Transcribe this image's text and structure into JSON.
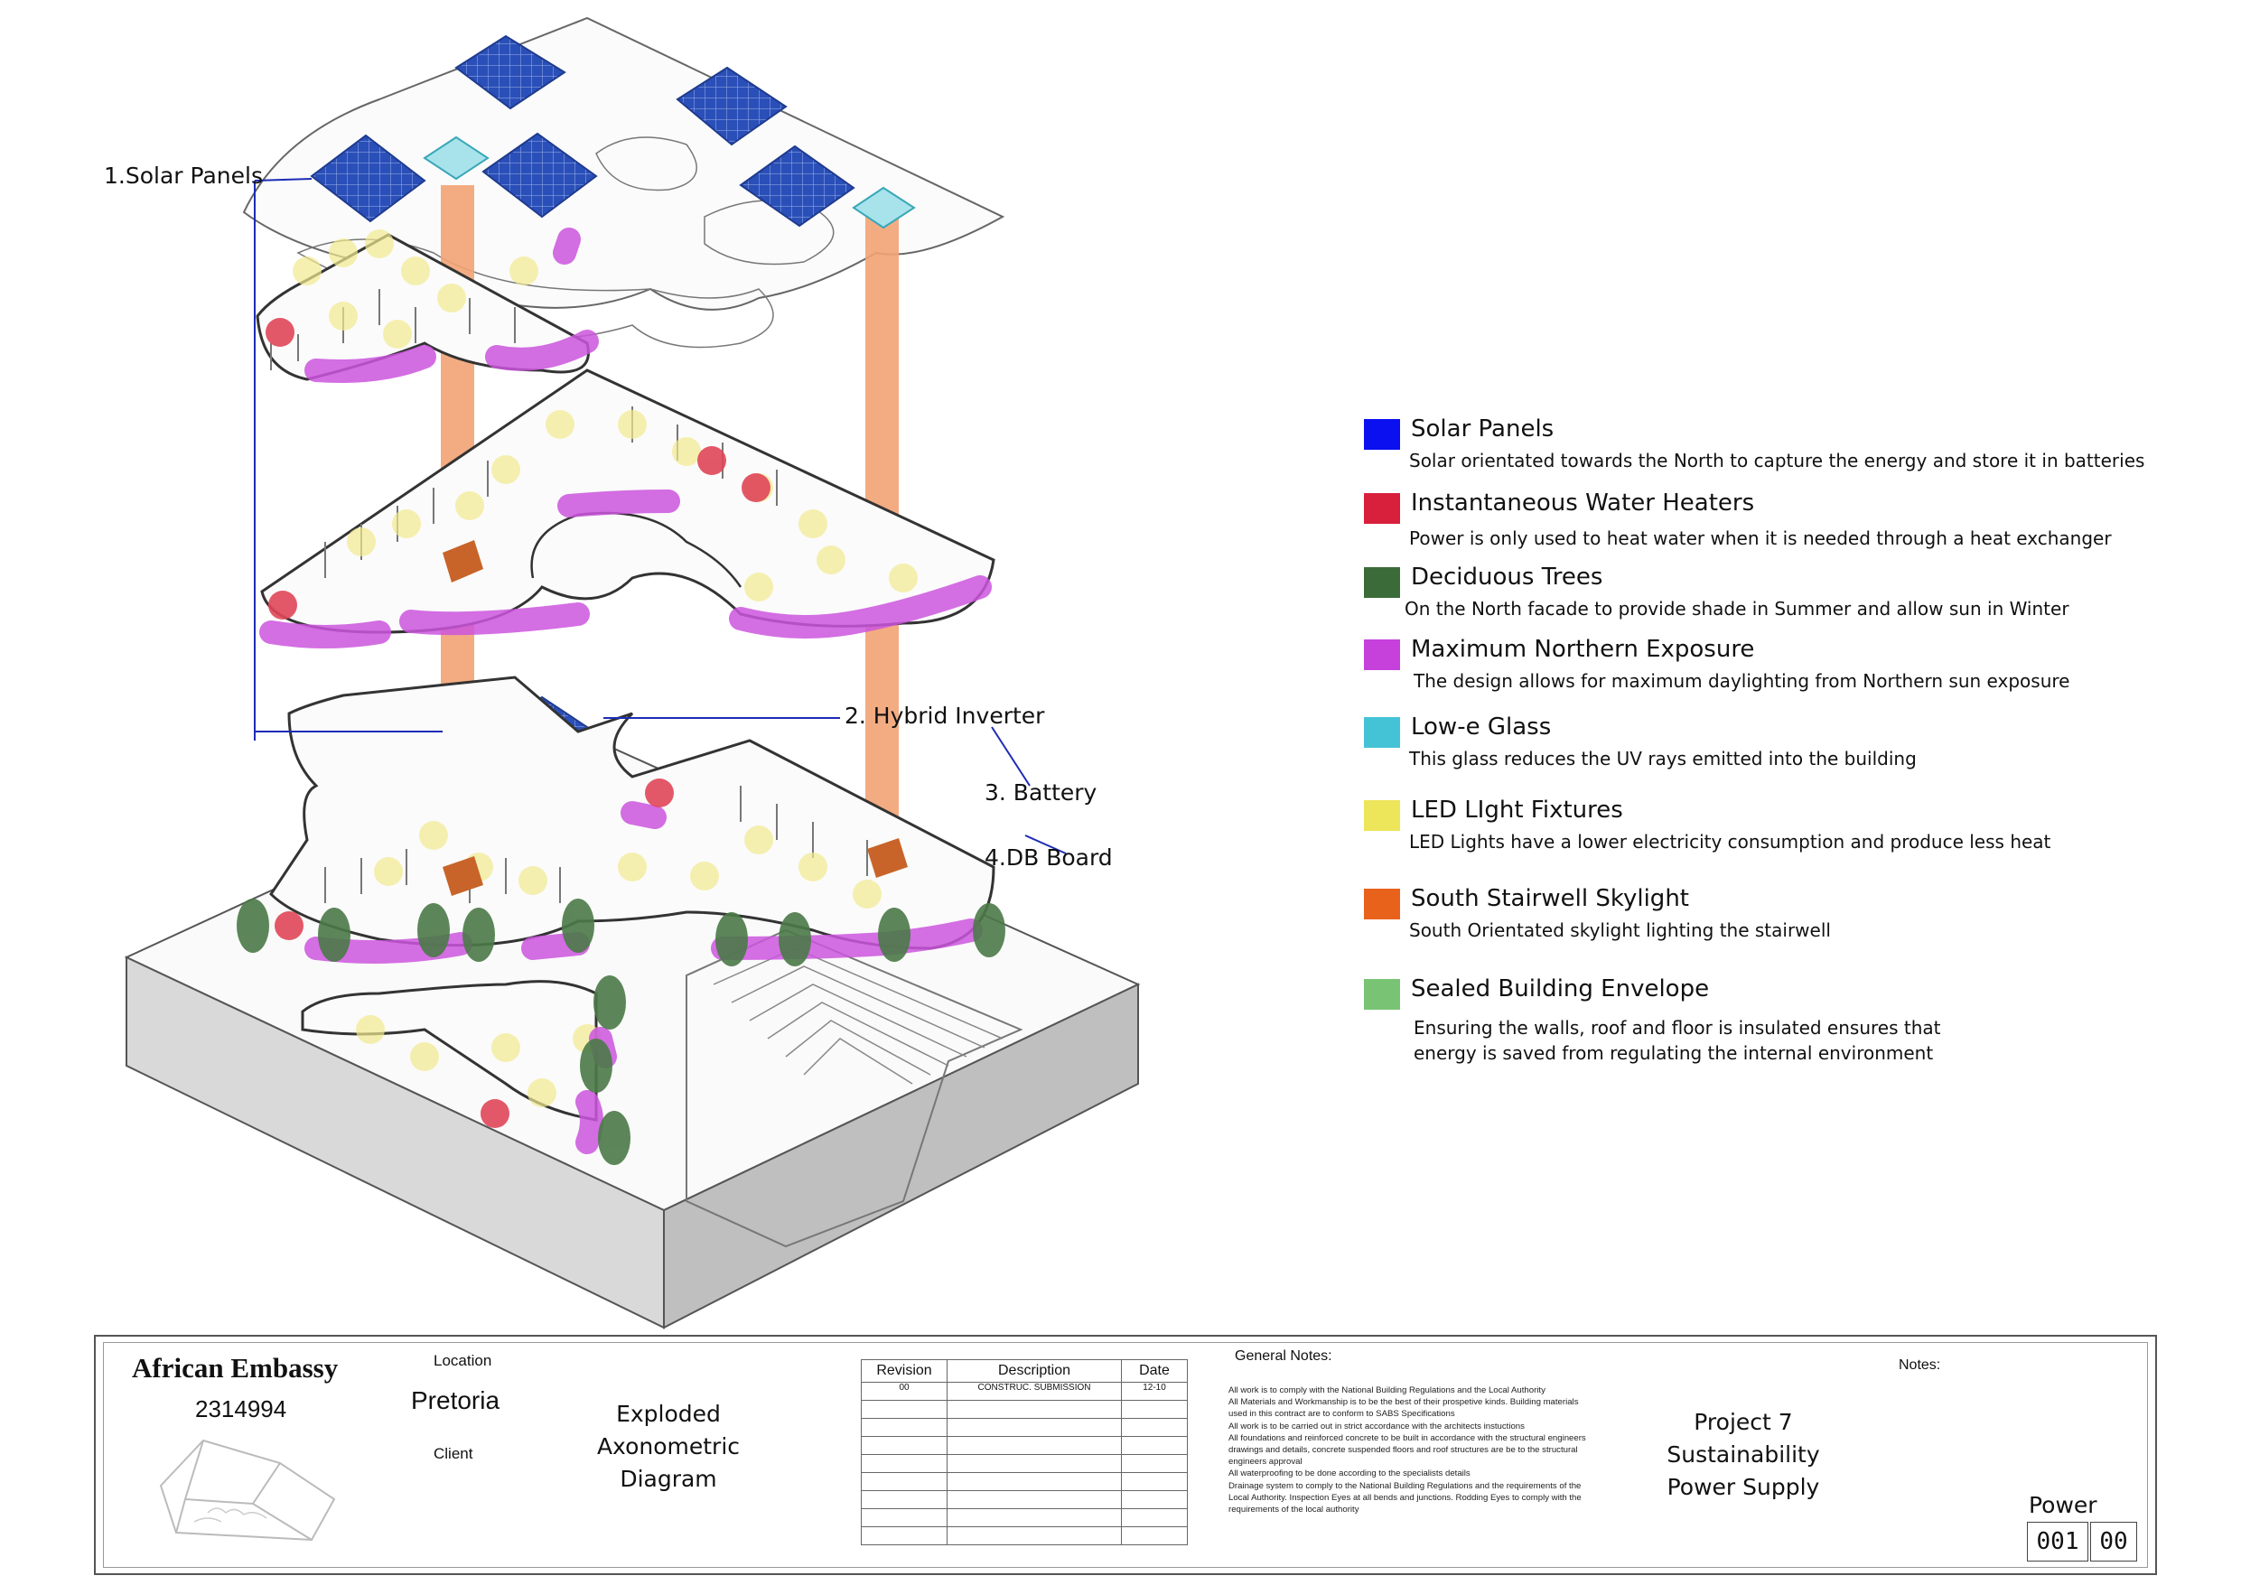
{
  "callouts": {
    "solar_panels": "1.Solar Panels",
    "hybrid_inverter": "2. Hybrid Inverter",
    "battery": "3. Battery",
    "db_board": "4.DB Board"
  },
  "legend": [
    {
      "key": "solar",
      "color": "#0a10f0",
      "title": "Solar Panels",
      "desc": "Solar orientated towards the North to capture the energy and store it in batteries"
    },
    {
      "key": "water",
      "color": "#d81f3c",
      "title": "Instantaneous Water Heaters",
      "desc": "Power is only used to heat water when it is needed through a heat exchanger"
    },
    {
      "key": "trees",
      "color": "#3c6b3a",
      "title": "Deciduous Trees",
      "desc": "On the North facade to provide shade in Summer and allow sun in Winter"
    },
    {
      "key": "exposure",
      "color": "#c641dc",
      "title": "Maximum Northern Exposure",
      "desc": "The design allows for maximum daylighting from Northern sun exposure"
    },
    {
      "key": "glass",
      "color": "#44c3d7",
      "title": "Low-e Glass",
      "desc": "This glass reduces the UV rays emitted into the building"
    },
    {
      "key": "led",
      "color": "#ede55a",
      "title": "LED LIght Fixtures",
      "desc": "LED Lights have a lower electricity consumption and produce less heat"
    },
    {
      "key": "stair",
      "color": "#e8621c",
      "title": "South Stairwell Skylight",
      "desc": "South Orientated skylight lighting the stairwell"
    },
    {
      "key": "envelope",
      "color": "#79c474",
      "title": "Sealed Building Envelope",
      "desc": "Ensuring the walls, roof and floor is insulated ensures that\nenergy is saved from regulating the internal environment"
    }
  ],
  "title_block": {
    "project_name": "African Embassy",
    "student_no": "2314994",
    "location_label": "Location",
    "location_value": "Pretoria",
    "client_label": "Client",
    "drawing_title": [
      "Exploded",
      "Axonometric",
      "Diagram"
    ],
    "revision_headers": [
      "Revision",
      "Description",
      "Date"
    ],
    "revisions": [
      {
        "rev": "00",
        "desc": "CONSTRUC. SUBMISSION",
        "date": "12-10"
      }
    ],
    "general_notes_label": "General Notes:",
    "general_notes": [
      "All work is to comply with the National Building Regulations and the Local Authority",
      "All Materials and Workmanship is to be the best of their prospetive kinds. Building materials used in this contract are to conform to SABS Specifications",
      "All work is to be carried out in strict accordance with the architects instuctions",
      "All foundations and reinforced concrete to be built in accordance with the structural engineers drawings and details, concrete suspended floors and roof structures are be to the structural engineers approval",
      "All waterproofing to be done according to the specialists details",
      "Drainage system to comply to the National Building Regulations and the requirements of the Local Authority. Inspection Eyes at all bends and junctions. Rodding Eyes to comply with the requirements of the local authority"
    ],
    "project_lines": [
      "Project 7",
      "Sustainability",
      "Power Supply"
    ],
    "notes_label": "Notes:",
    "sheet_label": "Power",
    "sheet_number": "001",
    "sheet_rev": "00"
  }
}
